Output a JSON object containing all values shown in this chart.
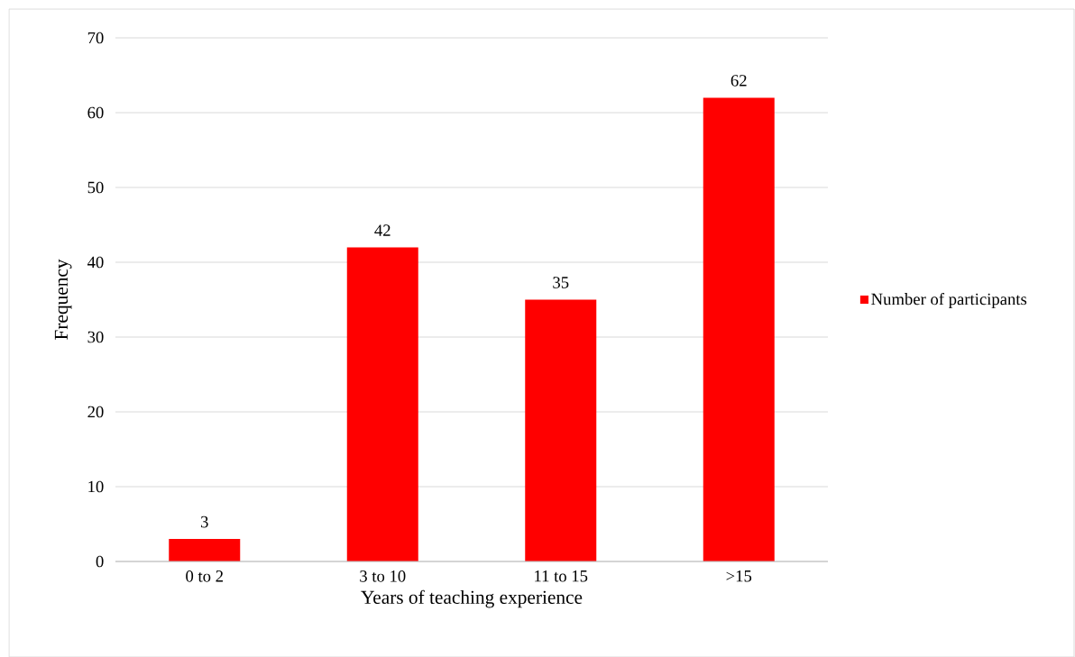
{
  "chart_data": {
    "type": "bar",
    "categories": [
      "0 to 2",
      "3 to 10",
      "11 to 15",
      ">15"
    ],
    "series": [
      {
        "name": "Number of participants",
        "color": "#ff0000",
        "values": [
          3,
          42,
          35,
          62
        ]
      }
    ],
    "xlabel": "Years of teaching experience",
    "ylabel": "Frequency",
    "ylim": [
      0,
      70
    ],
    "yticks": [
      0,
      10,
      20,
      30,
      40,
      50,
      60,
      70
    ],
    "grid": "y",
    "legend": "right",
    "data_labels": true
  }
}
